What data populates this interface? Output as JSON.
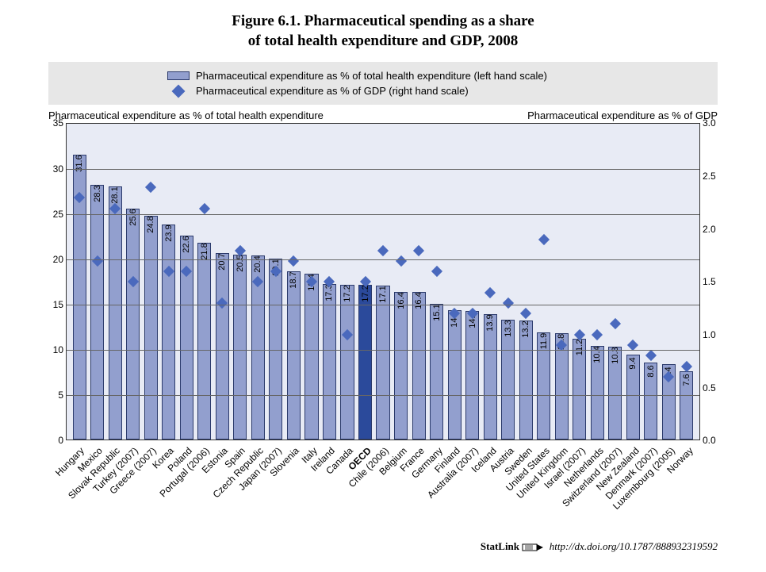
{
  "title_line1": "Figure 6.1.  Pharmaceutical spending as a share",
  "title_line2": "of total health expenditure and GDP, 2008",
  "legend": {
    "series1": "Pharmaceutical expenditure as % of total health expenditure  (left hand scale)",
    "series2": "Pharmaceutical expenditure as % of GDP (right hand scale)"
  },
  "axis_left_title": "Pharmaceutical expenditure  as % of total health  expenditure",
  "axis_right_title": "Pharmaceutical expenditure as % of GDP",
  "chart": {
    "type": "bar+scatter",
    "bar_color": "#929fce",
    "bar_border": "#2b3a6b",
    "highlight_bar_fill": "#2b4a9b",
    "diamond_color": "#4a69bd",
    "plot_bg": "#e8ebf5",
    "grid_color": "#666666",
    "legend_bg": "#e7e7e7",
    "y_left": {
      "min": 0,
      "max": 35,
      "step": 5
    },
    "y_right": {
      "min": 0,
      "max": 3.0,
      "step": 0.5
    },
    "bar_label_fontsize": 11,
    "axis_fontsize": 12,
    "title_fontsize": 19,
    "data": [
      {
        "label": "Hungary",
        "bar": 31.6,
        "gdp": 2.3
      },
      {
        "label": "Mexico",
        "bar": 28.3,
        "gdp": 1.7
      },
      {
        "label": "Slovak Republic",
        "bar": 28.1,
        "gdp": 2.2
      },
      {
        "label": "Turkey (2007)",
        "bar": 25.6,
        "gdp": 1.5
      },
      {
        "label": "Greece (2007)",
        "bar": 24.8,
        "gdp": 2.4
      },
      {
        "label": "Korea",
        "bar": 23.9,
        "gdp": 1.6
      },
      {
        "label": "Poland",
        "bar": 22.6,
        "gdp": 1.6
      },
      {
        "label": "Portugal (2006)",
        "bar": 21.8,
        "gdp": 2.2
      },
      {
        "label": "Estonia",
        "bar": 20.7,
        "gdp": 1.3
      },
      {
        "label": "Spain",
        "bar": 20.5,
        "gdp": 1.8
      },
      {
        "label": "Czech Republic",
        "bar": 20.4,
        "gdp": 1.5
      },
      {
        "label": "Japan (2007)",
        "bar": 20.1,
        "gdp": 1.6
      },
      {
        "label": "Slovenia",
        "bar": 18.7,
        "gdp": 1.7
      },
      {
        "label": "Italy",
        "bar": 18.4,
        "gdp": 1.5
      },
      {
        "label": "Ireland",
        "bar": 17.3,
        "gdp": 1.5
      },
      {
        "label": "Canada",
        "bar": 17.2,
        "gdp": 1.0
      },
      {
        "label": "OECD",
        "bar": 17.2,
        "gdp": 1.5,
        "highlight": true
      },
      {
        "label": "Chile (2006)",
        "bar": 17.1,
        "gdp": 1.8
      },
      {
        "label": "Belgium",
        "bar": 16.4,
        "gdp": 1.7
      },
      {
        "label": "France",
        "bar": 16.4,
        "gdp": 1.8
      },
      {
        "label": "Germany",
        "bar": 15.1,
        "gdp": 1.6
      },
      {
        "label": "Finland",
        "bar": 14.4,
        "gdp": 1.2
      },
      {
        "label": "Australia (2007)",
        "bar": 14.3,
        "gdp": 1.2
      },
      {
        "label": "Iceland",
        "bar": 13.9,
        "gdp": 1.4
      },
      {
        "label": "Austria",
        "bar": 13.3,
        "gdp": 1.3
      },
      {
        "label": "Sweden",
        "bar": 13.2,
        "gdp": 1.2
      },
      {
        "label": "United States",
        "bar": 11.9,
        "gdp": 1.9
      },
      {
        "label": "United Kingdom",
        "bar": 11.8,
        "gdp": 0.9
      },
      {
        "label": "Israel (2007)",
        "bar": 11.2,
        "gdp": 1.0
      },
      {
        "label": "Netherlands",
        "bar": 10.4,
        "gdp": 1.0
      },
      {
        "label": "Switzerland (2007)",
        "bar": 10.3,
        "gdp": 1.1
      },
      {
        "label": "New Zealand",
        "bar": 9.4,
        "gdp": 0.9
      },
      {
        "label": "Denmark (2007)",
        "bar": 8.6,
        "gdp": 0.8
      },
      {
        "label": "Luxembourg (2005)",
        "bar": 8.4,
        "gdp": 0.6
      },
      {
        "label": "Norway",
        "bar": 7.6,
        "gdp": 0.7
      }
    ]
  },
  "footer": {
    "statlink": "StatLink",
    "url": "http://dx.doi.org/10.1787/888932319592"
  }
}
